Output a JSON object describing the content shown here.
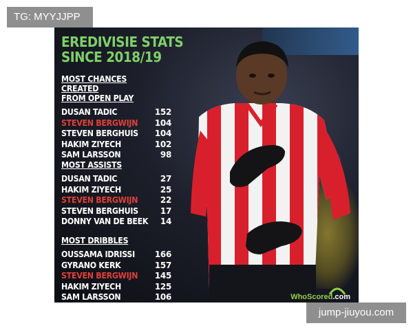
{
  "watermarks": {
    "top_left": "TG: MYYJJPP",
    "bottom_right": "jump-jiuyou.com"
  },
  "poster": {
    "title_line1": "EREDIVISIE STATS",
    "title_line2": "SINCE 2018/19",
    "sections": [
      {
        "heading_line1": "MOST CHANCES CREATED",
        "heading_line2": "FROM OPEN PLAY",
        "rows": [
          {
            "name": "DUSAN TADIC",
            "value": "152",
            "highlight": false
          },
          {
            "name": "STEVEN BERGWIJN",
            "value": "104",
            "highlight": true
          },
          {
            "name": "STEVEN BERGHUIS",
            "value": "104",
            "highlight": false
          },
          {
            "name": "HAKIM ZIYECH",
            "value": "102",
            "highlight": false
          },
          {
            "name": "SAM LARSSON",
            "value": "98",
            "highlight": false
          }
        ]
      },
      {
        "heading_line1": "MOST ASSISTS",
        "heading_line2": "",
        "rows": [
          {
            "name": "DUSAN TADIC",
            "value": "27",
            "highlight": false
          },
          {
            "name": "HAKIM ZIYECH",
            "value": "25",
            "highlight": false
          },
          {
            "name": "STEVEN BERGWIJN",
            "value": "22",
            "highlight": true
          },
          {
            "name": "STEVEN BERGHUIS",
            "value": "17",
            "highlight": false
          },
          {
            "name": "DONNY VAN DE BEEK",
            "value": "14",
            "highlight": false
          }
        ]
      },
      {
        "heading_line1": "MOST DRIBBLES",
        "heading_line2": "",
        "rows": [
          {
            "name": "OUSSAMA IDRISSI",
            "value": "166",
            "highlight": false
          },
          {
            "name": "GYRANO KERK",
            "value": "157",
            "highlight": false
          },
          {
            "name": "STEVEN BERGWIJN",
            "value": "145",
            "highlight": true
          },
          {
            "name": "HAKIM ZIYECH",
            "value": "125",
            "highlight": false
          },
          {
            "name": "SAM LARSSON",
            "value": "106",
            "highlight": false
          }
        ]
      }
    ],
    "logo": {
      "brand": "WhoScored",
      "suffix": ".com"
    }
  },
  "colors": {
    "title": "#7fd06a",
    "highlight": "#e0403a",
    "text": "#ffffff",
    "shirt_red": "#d8202c",
    "shirt_white": "#f2f2f2",
    "skin": "#5a3a26"
  }
}
